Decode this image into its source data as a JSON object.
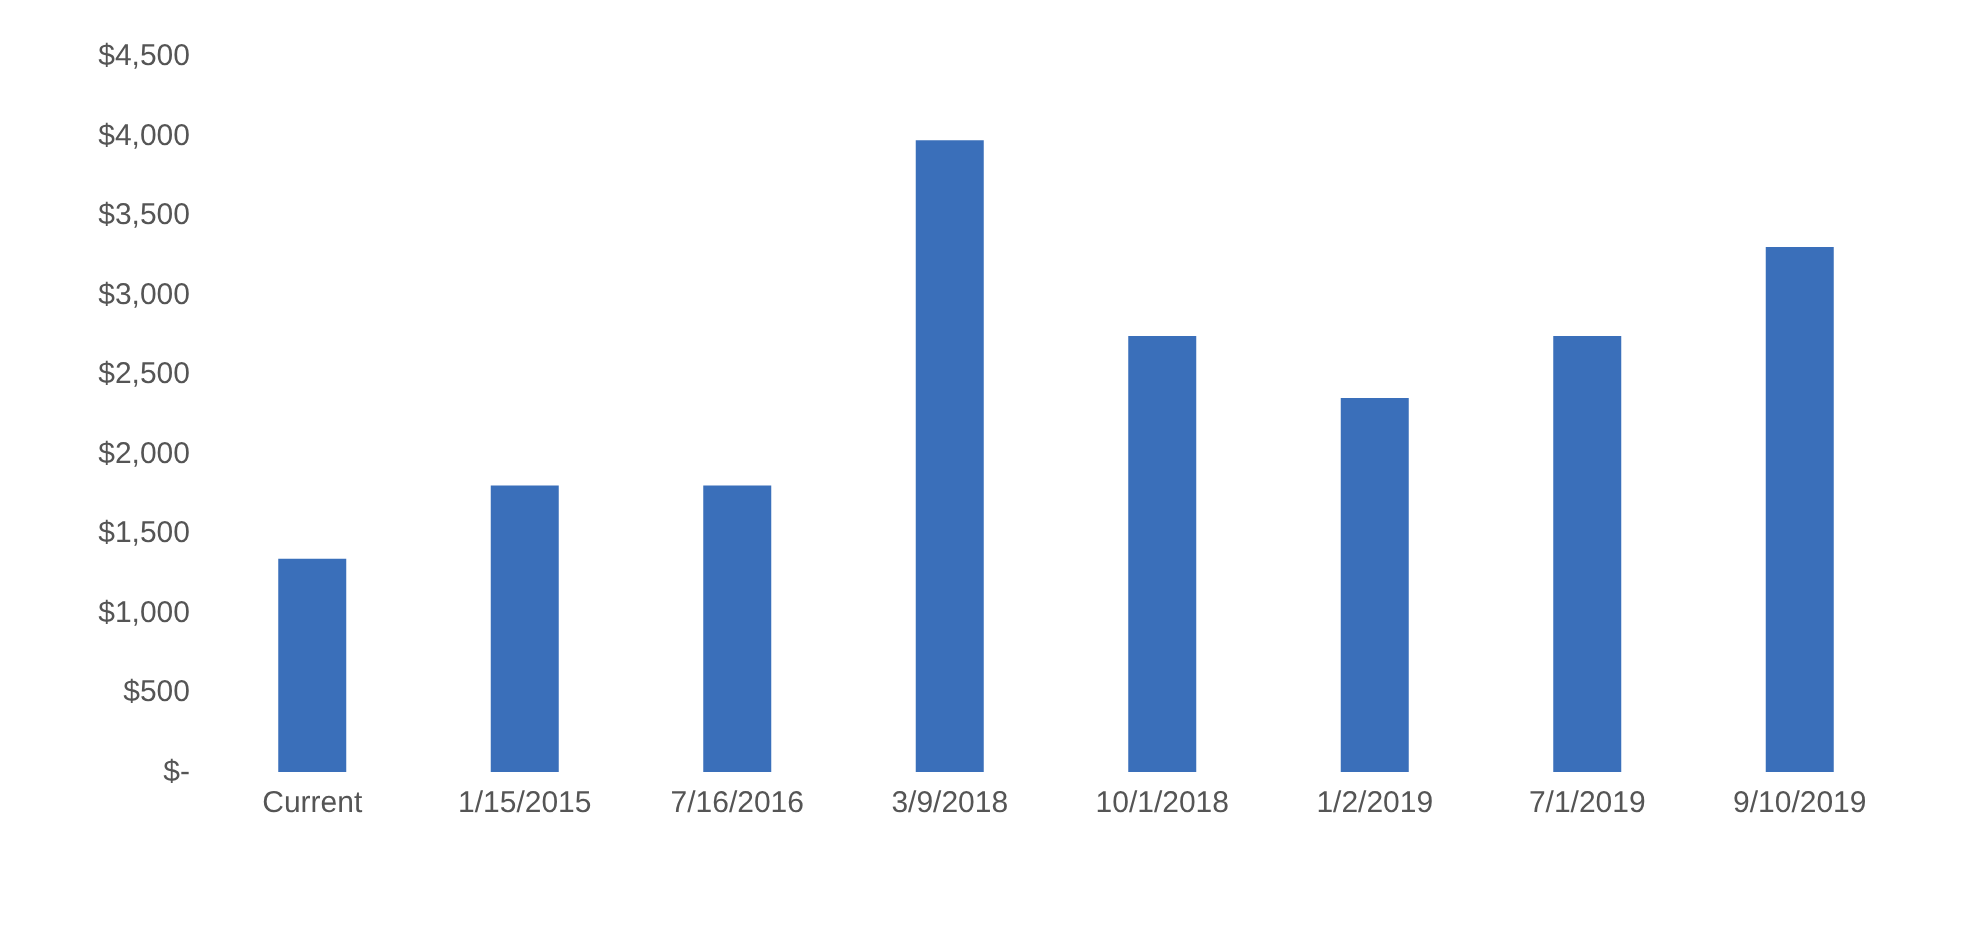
{
  "chart_data": {
    "type": "bar",
    "categories": [
      "Current",
      "1/15/2015",
      "7/16/2016",
      "3/9/2018",
      "10/1/2018",
      "1/2/2019",
      "7/1/2019",
      "9/10/2019"
    ],
    "values": [
      1340,
      1800,
      1800,
      3970,
      2740,
      2350,
      2740,
      3300
    ],
    "color": "#3a6fba",
    "ylim": [
      0,
      4500
    ],
    "yticks": [
      {
        "value": 0,
        "label": "$-"
      },
      {
        "value": 500,
        "label": "$500"
      },
      {
        "value": 1000,
        "label": "$1,000"
      },
      {
        "value": 1500,
        "label": "$1,500"
      },
      {
        "value": 2000,
        "label": "$2,000"
      },
      {
        "value": 2500,
        "label": "$2,500"
      },
      {
        "value": 3000,
        "label": "$3,000"
      },
      {
        "value": 3500,
        "label": "$3,500"
      },
      {
        "value": 4000,
        "label": "$4,000"
      },
      {
        "value": 4500,
        "label": "$4,500"
      }
    ],
    "grid": false
  }
}
